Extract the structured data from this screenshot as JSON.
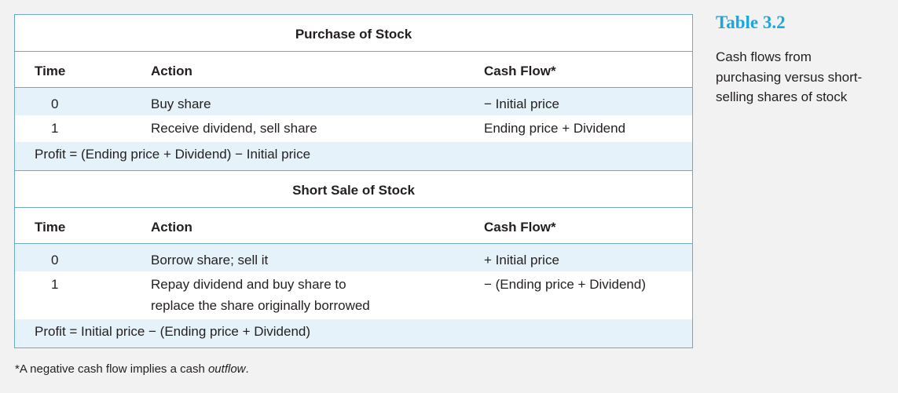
{
  "purchase": {
    "title": "Purchase of Stock",
    "headers": {
      "time": "Time",
      "action": "Action",
      "cash_flow": "Cash Flow*"
    },
    "rows": [
      {
        "time": "0",
        "action": "Buy share",
        "cash_flow": "− Initial price"
      },
      {
        "time": "1",
        "action": "Receive dividend, sell share",
        "cash_flow": "Ending price + Dividend"
      }
    ],
    "profit": "Profit = (Ending price + Dividend) − Initial price"
  },
  "short_sale": {
    "title": "Short Sale of Stock",
    "headers": {
      "time": "Time",
      "action": "Action",
      "cash_flow": "Cash Flow*"
    },
    "rows": [
      {
        "time": "0",
        "action": "Borrow share; sell it",
        "cash_flow": "+ Initial price"
      },
      {
        "time": "1",
        "action_line1": "Repay dividend and buy share to",
        "action_line2": "replace the share originally borrowed",
        "cash_flow": "− (Ending price + Dividend)"
      }
    ],
    "profit": "Profit = Initial price − (Ending price + Dividend)"
  },
  "footnote": {
    "prefix": "*A negative cash flow implies a cash ",
    "emphasis": "outflow",
    "suffix": "."
  },
  "sidebar": {
    "table_label": "Table 3.2",
    "caption": "Cash flows from purchasing versus short-selling shares of stock"
  },
  "colors": {
    "accent": "#1aa7dc",
    "border": "#6fa8c8",
    "tint": "#e6f2f9"
  }
}
